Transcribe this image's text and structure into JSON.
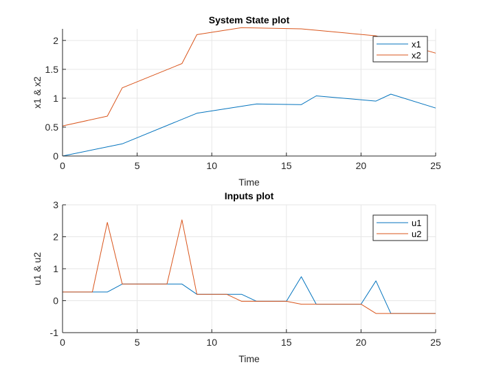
{
  "chart_data": [
    {
      "type": "line",
      "title": "System State plot",
      "xlabel": "Time",
      "ylabel": "x1 & x2",
      "xlim": [
        0,
        25
      ],
      "ylim": [
        0,
        2.2
      ],
      "xticks": [
        0,
        5,
        10,
        15,
        20,
        25
      ],
      "yticks": [
        0,
        0.5,
        1,
        1.5,
        2
      ],
      "xtick_labels": [
        "0",
        "5",
        "10",
        "15",
        "20",
        "25"
      ],
      "ytick_labels": [
        "0",
        "0.5",
        "1",
        "1.5",
        "2"
      ],
      "grid": true,
      "legend_position": "top-right",
      "series": [
        {
          "name": "x1",
          "color": "#0072BD",
          "x": [
            0,
            4,
            9,
            13,
            16,
            17,
            21,
            22,
            25
          ],
          "y": [
            0.0,
            0.21,
            0.74,
            0.9,
            0.89,
            1.04,
            0.95,
            1.07,
            0.83
          ]
        },
        {
          "name": "x2",
          "color": "#D95319",
          "x": [
            0,
            3,
            4,
            8,
            9,
            12,
            16,
            21,
            25
          ],
          "y": [
            0.52,
            0.69,
            1.18,
            1.6,
            2.1,
            2.22,
            2.2,
            2.08,
            1.78
          ]
        }
      ]
    },
    {
      "type": "line",
      "title": "Inputs plot",
      "xlabel": "Time",
      "ylabel": "u1 & u2",
      "xlim": [
        0,
        25
      ],
      "ylim": [
        -1,
        3
      ],
      "xticks": [
        0,
        5,
        10,
        15,
        20,
        25
      ],
      "yticks": [
        -1,
        0,
        1,
        2,
        3
      ],
      "xtick_labels": [
        "0",
        "5",
        "10",
        "15",
        "20",
        "25"
      ],
      "ytick_labels": [
        "-1",
        "0",
        "1",
        "2",
        "3"
      ],
      "grid": true,
      "legend_position": "top-right",
      "series": [
        {
          "name": "u1",
          "color": "#0072BD",
          "x": [
            0,
            3,
            4,
            8,
            9,
            12,
            13,
            15,
            16,
            17,
            20,
            21,
            22,
            25
          ],
          "y": [
            0.27,
            0.27,
            0.52,
            0.52,
            0.2,
            0.2,
            -0.02,
            -0.02,
            0.75,
            -0.11,
            -0.11,
            0.62,
            -0.4,
            -0.4
          ]
        },
        {
          "name": "u2",
          "color": "#D95319",
          "x": [
            0,
            2,
            3,
            4,
            7,
            8,
            9,
            11,
            12,
            15,
            16,
            20,
            21,
            25
          ],
          "y": [
            0.27,
            0.27,
            2.45,
            0.52,
            0.52,
            2.53,
            0.2,
            0.2,
            -0.02,
            -0.02,
            -0.11,
            -0.11,
            -0.4,
            -0.4
          ]
        }
      ]
    }
  ]
}
